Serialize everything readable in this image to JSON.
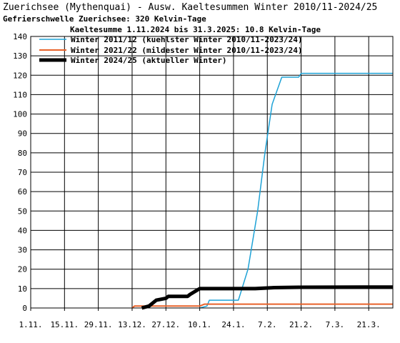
{
  "header": {
    "title": "Zuerichsee (Mythenquai) - Ausw. Kaeltesummen Winter 2010/11-2024/25",
    "subtitle": "Gefrierschwelle Zuerichsee: 320 Kelvin-Tage"
  },
  "chart_data": {
    "type": "line",
    "title": "Zuerichsee (Mythenquai) - Ausw. Kaeltesummen Winter 2010/11-2024/25",
    "annotation": "Kaeltesumme 1.11.2024 bis 31.3.2025: 10.8 Kelvin-Tage",
    "xlabel": "",
    "ylabel": "",
    "ylim": [
      0,
      140
    ],
    "yticks": [
      0,
      10,
      20,
      30,
      40,
      50,
      60,
      70,
      80,
      90,
      100,
      110,
      120,
      130,
      140
    ],
    "xlim": [
      "1.11.",
      "31.3."
    ],
    "xticks": [
      "1.11.",
      "15.11.",
      "29.11.",
      "13.12.",
      "27.12.",
      "10.1.",
      "24.1.",
      "7.2.",
      "21.2.",
      "7.3.",
      "21.3."
    ],
    "grid": true,
    "legend_position": "top-left",
    "series": [
      {
        "name": "Winter 2011/12 (kuehlster Winter 2010/11-2023/24)",
        "color": "#1ea2d6",
        "width": 1.5,
        "points": [
          [
            "10.1.",
            0
          ],
          [
            "13.1.",
            1
          ],
          [
            "14.1.",
            4
          ],
          [
            "24.1.",
            4
          ],
          [
            "26.1.",
            4
          ],
          [
            "27.1.",
            8
          ],
          [
            "30.1.",
            20
          ],
          [
            "3.2.",
            50
          ],
          [
            "6.2.",
            80
          ],
          [
            "9.2.",
            105
          ],
          [
            "13.2.",
            119
          ],
          [
            "20.2.",
            119
          ],
          [
            "21.2.",
            121
          ],
          [
            "31.3.",
            121
          ]
        ]
      },
      {
        "name": "Winter 2021/22 (mildester Winter 2010/11-2023/24)",
        "color": "#e8622a",
        "width": 2,
        "points": [
          [
            "13.12.",
            0
          ],
          [
            "14.12.",
            1
          ],
          [
            "10.1.",
            1
          ],
          [
            "12.1.",
            2
          ],
          [
            "31.3.",
            2
          ]
        ]
      },
      {
        "name": "Winter 2024/25 (aktueller Winter)",
        "color": "#000000",
        "width": 5,
        "points": [
          [
            "17.12.",
            0
          ],
          [
            "20.12.",
            1
          ],
          [
            "23.12.",
            4
          ],
          [
            "27.12.",
            5
          ],
          [
            "28.12.",
            6
          ],
          [
            "5.1.",
            6
          ],
          [
            "6.1.",
            7
          ],
          [
            "10.1.",
            10
          ],
          [
            "2.2.",
            10
          ],
          [
            "10.2.",
            10.5
          ],
          [
            "20.2.",
            10.7
          ],
          [
            "31.3.",
            10.8
          ]
        ]
      }
    ]
  }
}
